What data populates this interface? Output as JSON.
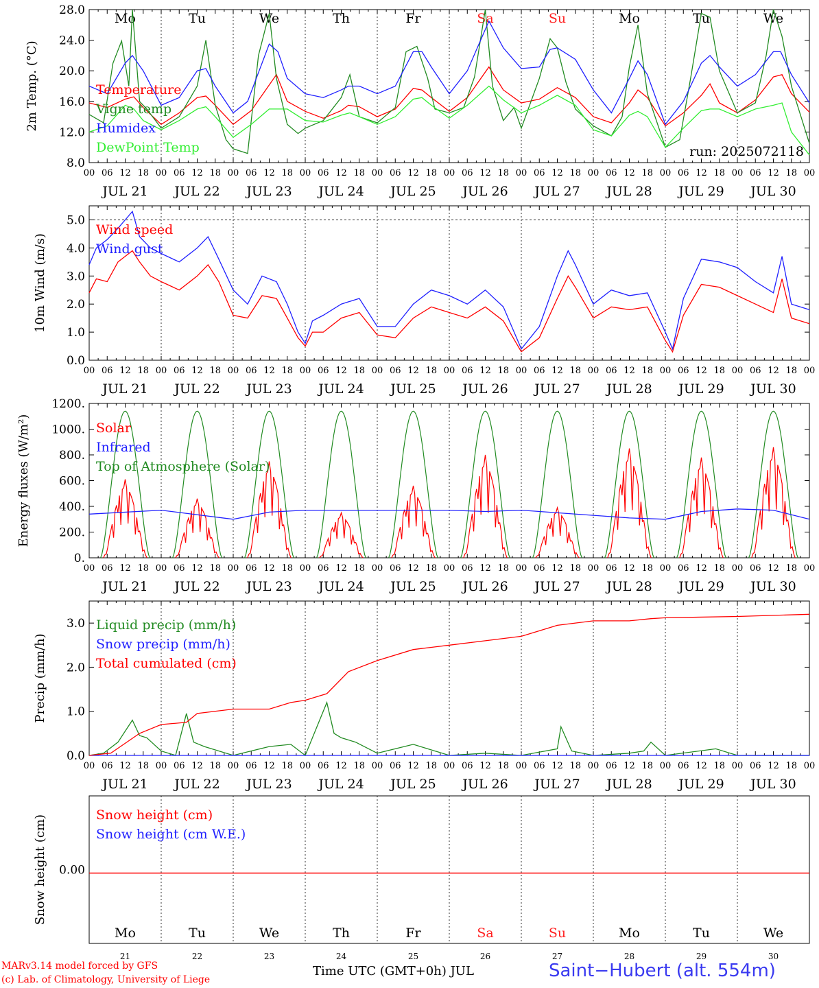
{
  "run_label": "run: 2025072118",
  "footer": {
    "model_line": "MARv3.14 model forced by GFS",
    "credit_line": "(c) Lab. of Climatology, University of Liege",
    "axis_title": "Time UTC (GMT+0h) JUL",
    "station": "Saint−Hubert (alt. 554m)"
  },
  "colors": {
    "red": "#ff0000",
    "green": "#228b22",
    "blue": "#2020ff",
    "lightgreen": "#33ee33",
    "weekend": "#ff2020"
  },
  "time_axis": {
    "hour_ticks": [
      "00",
      "06",
      "12",
      "18"
    ],
    "end_tick": "00",
    "date_labels": [
      "JUL 21",
      "JUL 22",
      "JUL 23",
      "JUL 24",
      "JUL 25",
      "JUL 26",
      "JUL 27",
      "JUL 28",
      "JUL 29",
      "JUL 30"
    ],
    "weekdays": [
      "Mo",
      "Tu",
      "We",
      "Th",
      "Fr",
      "Sa",
      "Su",
      "Mo",
      "Tu",
      "We"
    ],
    "weekend_flags": [
      false,
      false,
      false,
      false,
      false,
      true,
      true,
      false,
      false,
      false
    ],
    "day_numbers": [
      "21",
      "22",
      "23",
      "24",
      "25",
      "26",
      "27",
      "28",
      "29",
      "30"
    ]
  },
  "chart_data": [
    {
      "type": "line",
      "ylabel": "2m Temp. (°C)",
      "ylim": [
        8,
        28
      ],
      "yticks": [
        "8.0",
        "12.0",
        "16.0",
        "20.0",
        "24.0",
        "28.0"
      ],
      "xlim_days": [
        0,
        10
      ],
      "series": [
        {
          "name": "Temperature",
          "color": "red",
          "x": [
            0,
            0.25,
            0.5,
            0.62,
            0.75,
            1.0,
            1.25,
            1.5,
            1.62,
            1.75,
            2.0,
            2.25,
            2.6,
            2.75,
            3.0,
            3.25,
            3.5,
            3.6,
            3.75,
            4.0,
            4.25,
            4.5,
            4.62,
            4.75,
            5.0,
            5.25,
            5.55,
            5.75,
            6.0,
            6.25,
            6.5,
            6.75,
            7.0,
            7.25,
            7.5,
            7.62,
            7.75,
            8.0,
            8.25,
            8.5,
            8.62,
            8.75,
            9.0,
            9.25,
            9.5,
            9.62,
            9.75,
            10.0
          ],
          "y": [
            15.8,
            15.2,
            16.3,
            16.6,
            15.2,
            13.0,
            14.5,
            16.5,
            16.7,
            15.5,
            13.0,
            14.8,
            19.5,
            16.0,
            14.7,
            13.8,
            14.8,
            15.5,
            15.3,
            14.0,
            15.0,
            17.7,
            17.5,
            16.5,
            14.7,
            16.5,
            20.5,
            17.5,
            15.8,
            16.3,
            17.8,
            16.5,
            14.0,
            13.2,
            15.8,
            17.5,
            16.5,
            12.8,
            14.5,
            16.8,
            18.3,
            15.8,
            14.5,
            16.2,
            19.2,
            19.5,
            17.0,
            14.6
          ]
        },
        {
          "name": "Vigne temp",
          "color": "green",
          "x": [
            0,
            0.2,
            0.33,
            0.45,
            0.55,
            0.6,
            0.7,
            0.8,
            1.0,
            1.25,
            1.5,
            1.62,
            1.75,
            1.9,
            2.0,
            2.2,
            2.35,
            2.5,
            2.6,
            2.75,
            2.9,
            3.0,
            3.25,
            3.5,
            3.62,
            3.75,
            4.0,
            4.25,
            4.4,
            4.55,
            4.7,
            4.8,
            5.0,
            5.2,
            5.35,
            5.5,
            5.6,
            5.75,
            5.9,
            6.0,
            6.25,
            6.4,
            6.5,
            6.62,
            6.75,
            7.0,
            7.25,
            7.4,
            7.5,
            7.62,
            7.75,
            8.0,
            8.2,
            8.35,
            8.5,
            8.62,
            8.75,
            9.0,
            9.25,
            9.4,
            9.5,
            9.62,
            9.75,
            10.0
          ],
          "y": [
            14.3,
            13.2,
            21.0,
            23.9,
            18.0,
            28.0,
            16.0,
            15.0,
            12.5,
            14.0,
            18.0,
            24.0,
            15.5,
            11.0,
            9.8,
            9.2,
            22.0,
            27.5,
            19.0,
            13.0,
            11.8,
            12.5,
            13.5,
            16.5,
            19.5,
            14.0,
            13.2,
            15.2,
            22.5,
            23.2,
            19.0,
            15.0,
            14.5,
            15.2,
            19.2,
            28.0,
            18.0,
            13.5,
            15.2,
            12.5,
            19.0,
            24.2,
            23.0,
            18.5,
            15.0,
            12.8,
            11.5,
            14.0,
            20.5,
            26.0,
            17.0,
            10.0,
            11.0,
            19.0,
            27.5,
            27.0,
            20.0,
            14.5,
            15.8,
            22.0,
            28.0,
            24.5,
            18.0,
            10.5
          ]
        },
        {
          "name": "Humidex",
          "color": "blue",
          "x": [
            0,
            0.25,
            0.5,
            0.6,
            0.75,
            1.0,
            1.25,
            1.5,
            1.62,
            1.75,
            2.0,
            2.2,
            2.5,
            2.62,
            2.75,
            3.0,
            3.25,
            3.5,
            3.6,
            3.75,
            4.0,
            4.25,
            4.5,
            4.62,
            4.75,
            5.0,
            5.25,
            5.55,
            5.75,
            6.0,
            6.25,
            6.4,
            6.5,
            6.75,
            7.0,
            7.25,
            7.5,
            7.62,
            7.75,
            8.0,
            8.25,
            8.5,
            8.62,
            8.75,
            9.0,
            9.25,
            9.5,
            9.6,
            9.75,
            10.0
          ],
          "y": [
            18.0,
            17.0,
            21.0,
            22.0,
            20.0,
            15.5,
            16.5,
            20.0,
            20.3,
            18.0,
            14.5,
            16.0,
            23.5,
            22.5,
            19.0,
            17.0,
            16.5,
            17.5,
            18.0,
            18.0,
            17.0,
            18.0,
            22.5,
            22.5,
            20.5,
            17.0,
            20.0,
            26.5,
            23.0,
            20.3,
            20.5,
            22.8,
            23.0,
            21.5,
            17.5,
            14.5,
            19.0,
            21.3,
            19.5,
            13.0,
            16.0,
            21.0,
            22.0,
            20.5,
            18.0,
            19.5,
            22.5,
            22.5,
            19.5,
            15.8
          ]
        },
        {
          "name": "DewPoint Temp",
          "color": "lightgreen",
          "x": [
            0,
            0.25,
            0.5,
            0.62,
            0.75,
            1.0,
            1.25,
            1.5,
            1.62,
            1.75,
            2.0,
            2.25,
            2.5,
            2.75,
            3.0,
            3.25,
            3.5,
            3.62,
            3.75,
            4.0,
            4.25,
            4.5,
            4.62,
            4.75,
            5.0,
            5.25,
            5.55,
            5.75,
            6.0,
            6.25,
            6.5,
            6.75,
            7.0,
            7.25,
            7.5,
            7.62,
            7.75,
            8.0,
            8.25,
            8.5,
            8.62,
            8.75,
            9.0,
            9.25,
            9.5,
            9.62,
            9.75,
            10.0
          ],
          "y": [
            12.0,
            12.8,
            15.5,
            15.0,
            13.5,
            12.3,
            13.5,
            15.0,
            15.3,
            14.0,
            11.3,
            13.0,
            15.0,
            15.0,
            13.5,
            13.3,
            14.2,
            14.5,
            14.0,
            13.0,
            14.0,
            16.3,
            16.5,
            15.5,
            13.8,
            15.5,
            18.0,
            16.2,
            14.5,
            15.5,
            16.8,
            15.5,
            12.3,
            11.5,
            14.2,
            14.7,
            14.0,
            10.0,
            12.5,
            14.8,
            15.0,
            15.0,
            14.0,
            15.0,
            15.5,
            15.8,
            12.0,
            9.0
          ]
        }
      ]
    },
    {
      "type": "line",
      "ylabel": "10m Wind (m/s)",
      "ylim": [
        0,
        5.5
      ],
      "yticks": [
        "0.0",
        "1.0",
        "2.0",
        "3.0",
        "4.0",
        "5.0"
      ],
      "xlim_days": [
        0,
        10
      ],
      "series": [
        {
          "name": "Wind speed",
          "color": "red",
          "x": [
            0,
            0.1,
            0.25,
            0.4,
            0.5,
            0.6,
            0.7,
            0.85,
            1.0,
            1.25,
            1.5,
            1.65,
            1.8,
            2.0,
            2.2,
            2.4,
            2.6,
            2.75,
            2.9,
            3.0,
            3.1,
            3.25,
            3.5,
            3.75,
            4.0,
            4.25,
            4.5,
            4.75,
            5.0,
            5.25,
            5.5,
            5.75,
            6.0,
            6.25,
            6.5,
            6.65,
            6.75,
            7.0,
            7.25,
            7.5,
            7.75,
            8.0,
            8.1,
            8.25,
            8.5,
            8.75,
            9.0,
            9.25,
            9.5,
            9.62,
            9.75,
            10.0
          ],
          "y": [
            2.4,
            2.9,
            2.8,
            3.5,
            3.7,
            3.9,
            3.5,
            3.0,
            2.8,
            2.5,
            3.0,
            3.4,
            2.8,
            1.6,
            1.5,
            2.3,
            2.2,
            1.5,
            0.8,
            0.5,
            1.0,
            1.0,
            1.5,
            1.7,
            0.9,
            0.8,
            1.5,
            1.9,
            1.7,
            1.5,
            1.9,
            1.4,
            0.3,
            0.8,
            2.2,
            3.0,
            2.6,
            1.5,
            1.9,
            1.8,
            1.9,
            0.7,
            0.3,
            1.6,
            2.7,
            2.6,
            2.3,
            2.0,
            1.7,
            2.9,
            1.5,
            1.3
          ]
        },
        {
          "name": "Wind gust",
          "color": "blue",
          "x": [
            0,
            0.1,
            0.25,
            0.4,
            0.5,
            0.6,
            0.7,
            0.85,
            1.0,
            1.25,
            1.5,
            1.65,
            1.8,
            2.0,
            2.2,
            2.4,
            2.6,
            2.75,
            2.9,
            3.0,
            3.1,
            3.25,
            3.5,
            3.75,
            4.0,
            4.25,
            4.5,
            4.75,
            5.0,
            5.25,
            5.5,
            5.75,
            6.0,
            6.25,
            6.5,
            6.65,
            6.75,
            7.0,
            7.25,
            7.5,
            7.75,
            8.0,
            8.1,
            8.25,
            8.5,
            8.75,
            9.0,
            9.25,
            9.5,
            9.62,
            9.75,
            10.0
          ],
          "y": [
            3.4,
            4.0,
            4.3,
            4.7,
            5.0,
            5.3,
            4.4,
            4.0,
            3.8,
            3.5,
            4.0,
            4.4,
            3.6,
            2.5,
            2.0,
            3.0,
            2.8,
            2.0,
            1.0,
            0.6,
            1.4,
            1.6,
            2.0,
            2.2,
            1.2,
            1.2,
            2.0,
            2.5,
            2.3,
            2.0,
            2.5,
            1.9,
            0.4,
            1.2,
            3.0,
            3.9,
            3.4,
            2.0,
            2.5,
            2.3,
            2.4,
            1.0,
            0.4,
            2.2,
            3.6,
            3.5,
            3.3,
            2.8,
            2.4,
            3.7,
            2.0,
            1.8
          ]
        }
      ]
    },
    {
      "type": "line",
      "ylabel": "Energy fluxes (W/m²)",
      "ylim": [
        0,
        1200
      ],
      "yticks": [
        "0.",
        "200.",
        "400.",
        "600.",
        "800.",
        "1000.",
        "1200."
      ],
      "xlim_days": [
        0,
        10
      ],
      "series": [
        {
          "name": "Solar",
          "color": "red",
          "day_peaks": [
            610,
            460,
            750,
            350,
            560,
            800,
            390,
            850,
            780,
            860
          ]
        },
        {
          "name": "Infrared",
          "color": "blue",
          "x": [
            0,
            1,
            2,
            2.5,
            3,
            4,
            5,
            5.5,
            6,
            7,
            7.5,
            8,
            8.5,
            9,
            9.5,
            10
          ],
          "y": [
            340,
            370,
            300,
            355,
            370,
            370,
            370,
            360,
            370,
            330,
            310,
            300,
            360,
            380,
            370,
            300
          ]
        },
        {
          "name": "Top of Atmosphere (Solar)",
          "color": "green",
          "peak": 1140,
          "sunrise_hour": 3.8,
          "sunset_hour": 20.2
        }
      ]
    },
    {
      "type": "line",
      "ylabel": "Precip (mm/h)",
      "ylim": [
        0,
        3.5
      ],
      "yticks": [
        "0.0",
        "1.0",
        "2.0",
        "3.0"
      ],
      "xlim_days": [
        0,
        10
      ],
      "series": [
        {
          "name": "Liquid precip (mm/h)",
          "color": "green",
          "x": [
            0,
            0.2,
            0.4,
            0.6,
            0.7,
            0.8,
            1.0,
            1.2,
            1.35,
            1.45,
            1.6,
            2.0,
            2.5,
            2.8,
            3.0,
            3.3,
            3.4,
            3.5,
            3.7,
            4.0,
            4.5,
            5.0,
            5.5,
            6.0,
            6.5,
            6.55,
            6.7,
            7.0,
            7.5,
            7.7,
            7.8,
            8.0,
            8.7,
            9.0,
            10.0
          ],
          "y": [
            0,
            0.05,
            0.3,
            0.8,
            0.45,
            0.4,
            0.1,
            0.0,
            0.95,
            0.3,
            0.2,
            0.0,
            0.2,
            0.25,
            0.0,
            1.2,
            0.5,
            0.4,
            0.3,
            0.05,
            0.25,
            0.0,
            0.05,
            0.0,
            0.15,
            0.65,
            0.1,
            0.0,
            0.05,
            0.1,
            0.3,
            0.0,
            0.15,
            0.0,
            0.0
          ]
        },
        {
          "name": "Snow precip (mm/h)",
          "color": "blue",
          "x": [
            0,
            10
          ],
          "y": [
            0,
            0
          ]
        },
        {
          "name": "Total cumulated (cm)",
          "color": "red",
          "x": [
            0,
            0.3,
            0.7,
            1.0,
            1.35,
            1.5,
            2.0,
            2.5,
            2.8,
            3.0,
            3.3,
            3.6,
            4.0,
            4.5,
            5.0,
            5.5,
            6.0,
            6.5,
            7.0,
            7.5,
            7.8,
            8.0,
            9.0,
            10.0
          ],
          "y": [
            0,
            0.05,
            0.5,
            0.7,
            0.75,
            0.95,
            1.05,
            1.05,
            1.2,
            1.25,
            1.4,
            1.9,
            2.15,
            2.4,
            2.5,
            2.6,
            2.7,
            2.95,
            3.05,
            3.05,
            3.1,
            3.12,
            3.15,
            3.2
          ]
        }
      ]
    },
    {
      "type": "line",
      "ylabel": "Snow height (cm)",
      "yticks": [
        "0.00"
      ],
      "xlim_days": [
        0,
        10
      ],
      "series": [
        {
          "name": "Snow height (cm)",
          "color": "red",
          "x": [
            0,
            10
          ],
          "y": [
            0,
            0
          ]
        },
        {
          "name": "Snow height (cm W.E.)",
          "color": "blue",
          "x": [
            0,
            10
          ],
          "y": [
            0,
            0
          ]
        }
      ]
    }
  ]
}
